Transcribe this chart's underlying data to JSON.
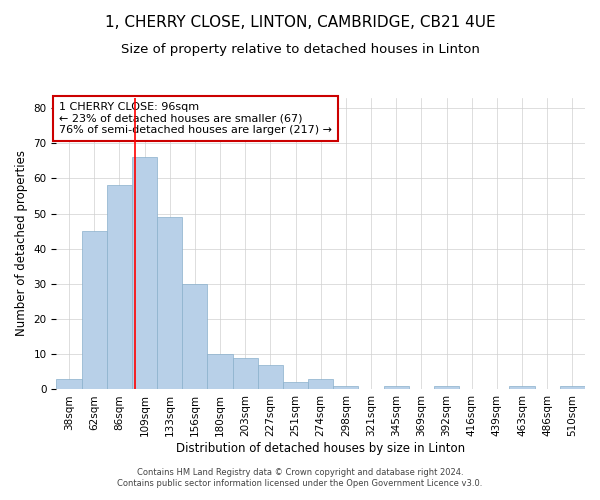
{
  "title": "1, CHERRY CLOSE, LINTON, CAMBRIDGE, CB21 4UE",
  "subtitle": "Size of property relative to detached houses in Linton",
  "xlabel": "Distribution of detached houses by size in Linton",
  "ylabel": "Number of detached properties",
  "footnote1": "Contains HM Land Registry data © Crown copyright and database right 2024.",
  "footnote2": "Contains public sector information licensed under the Open Government Licence v3.0.",
  "annotation_line1": "1 CHERRY CLOSE: 96sqm",
  "annotation_line2": "← 23% of detached houses are smaller (67)",
  "annotation_line3": "76% of semi-detached houses are larger (217) →",
  "bar_values": [
    3,
    45,
    58,
    66,
    49,
    30,
    10,
    9,
    7,
    2,
    3,
    1,
    0,
    1,
    0,
    1,
    0,
    0,
    1,
    0,
    1
  ],
  "bar_labels": [
    "38sqm",
    "62sqm",
    "86sqm",
    "109sqm",
    "133sqm",
    "156sqm",
    "180sqm",
    "203sqm",
    "227sqm",
    "251sqm",
    "274sqm",
    "298sqm",
    "321sqm",
    "345sqm",
    "369sqm",
    "392sqm",
    "416sqm",
    "439sqm",
    "463sqm",
    "486sqm",
    "510sqm"
  ],
  "bar_color": "#b8d0e8",
  "bar_edge_color": "#8ab0cc",
  "red_line_x": 2.62,
  "ylim": [
    0,
    83
  ],
  "yticks": [
    0,
    10,
    20,
    30,
    40,
    50,
    60,
    70,
    80
  ],
  "background_color": "#ffffff",
  "grid_color": "#d0d0d0",
  "title_fontsize": 11,
  "subtitle_fontsize": 9.5,
  "axis_label_fontsize": 8.5,
  "tick_fontsize": 7.5,
  "annotation_box_color": "#ffffff",
  "annotation_box_edge": "#cc0000",
  "annotation_fontsize": 8,
  "footnote_fontsize": 6
}
